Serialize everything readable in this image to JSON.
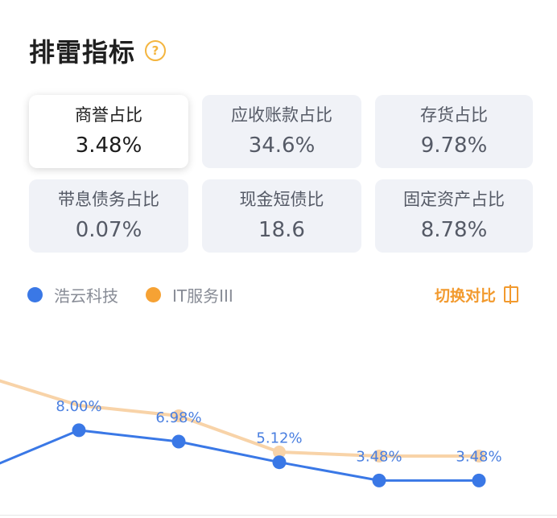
{
  "header": {
    "title": "排雷指标",
    "help_icon": "question-circle-icon"
  },
  "cards": [
    {
      "label": "商誉占比",
      "value": "3.48%",
      "active": true
    },
    {
      "label": "应收账款占比",
      "value": "34.6%",
      "active": false
    },
    {
      "label": "存货占比",
      "value": "9.78%",
      "active": false
    },
    {
      "label": "带息债务占比",
      "value": "0.07%",
      "active": false
    },
    {
      "label": "现金短债比",
      "value": "18.6",
      "active": false
    },
    {
      "label": "固定资产占比",
      "value": "8.78%",
      "active": false
    }
  ],
  "legend": {
    "series": [
      {
        "name": "浩云科技",
        "color": "#3a78e6"
      },
      {
        "name": "IT服务III",
        "color": "#f6a234"
      }
    ],
    "switch_label": "切换对比",
    "switch_icon": "compare-toggle-icon"
  },
  "chart_data": {
    "type": "line",
    "series": [
      {
        "name": "浩云科技",
        "values": [
          null,
          8.0,
          6.98,
          5.12,
          3.48,
          3.48
        ],
        "labels": [
          "",
          "8.00%",
          "6.98%",
          "5.12%",
          "3.48%",
          "3.48%"
        ]
      },
      {
        "name": "IT服务III",
        "values": [
          null,
          null,
          null,
          null,
          null,
          null
        ]
      }
    ]
  }
}
